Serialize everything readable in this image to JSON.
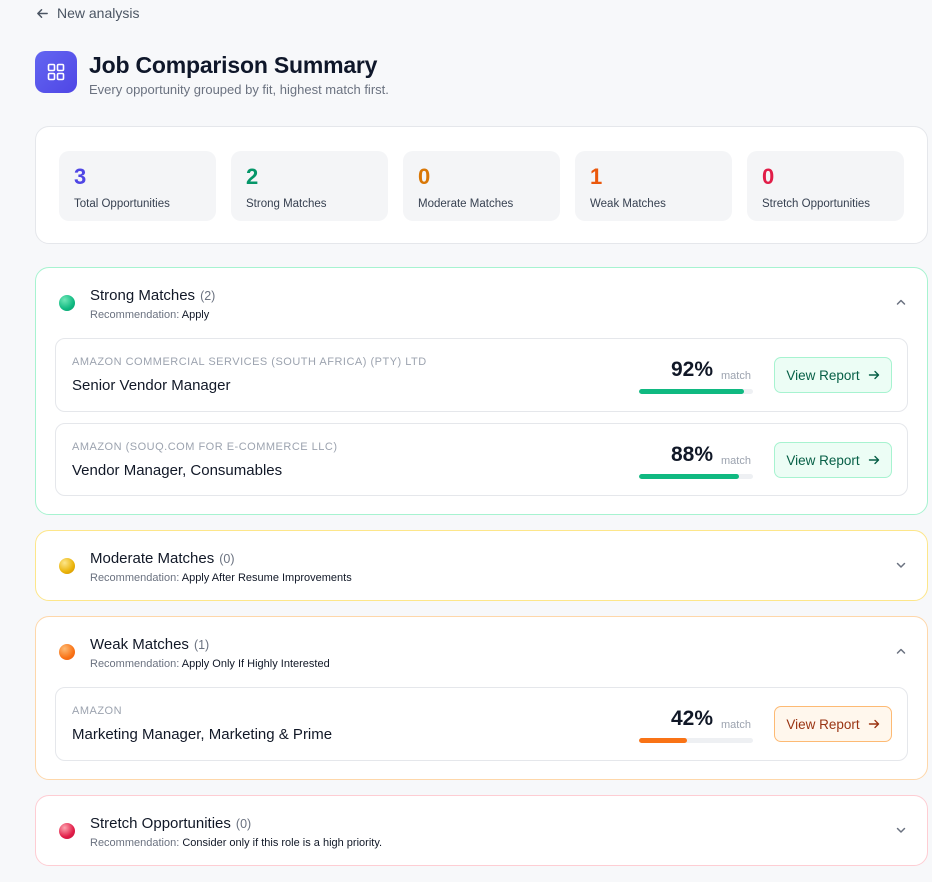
{
  "nav": {
    "back_label": "New analysis"
  },
  "header": {
    "title": "Job Comparison Summary",
    "subtitle": "Every opportunity grouped by fit, highest match first."
  },
  "stats": [
    {
      "value": "3",
      "label": "Total Opportunities",
      "color": "#4f46e5"
    },
    {
      "value": "2",
      "label": "Strong Matches",
      "color": "#059669"
    },
    {
      "value": "0",
      "label": "Moderate Matches",
      "color": "#d97706"
    },
    {
      "value": "1",
      "label": "Weak Matches",
      "color": "#ea580c"
    },
    {
      "value": "0",
      "label": "Stretch Opportunities",
      "color": "#e11d48"
    }
  ],
  "groups": {
    "strong": {
      "name": "Strong Matches",
      "count": "(2)",
      "rec_prefix": "Recommendation:",
      "rec_value": "Apply",
      "expanded": true,
      "color": "#10b981",
      "jobs": [
        {
          "company": "AMAZON COMMERCIAL SERVICES (SOUTH AFRICA) (PTY) LTD",
          "role": "Senior Vendor Manager",
          "match_pct": "92%",
          "match_word": "match",
          "match_value": 92,
          "button": "View Report"
        },
        {
          "company": "AMAZON (SOUQ.COM FOR E-COMMERCE LLC)",
          "role": "Vendor Manager, Consumables",
          "match_pct": "88%",
          "match_word": "match",
          "match_value": 88,
          "button": "View Report"
        }
      ]
    },
    "moderate": {
      "name": "Moderate Matches",
      "count": "(0)",
      "rec_prefix": "Recommendation:",
      "rec_value": "Apply After Resume Improvements",
      "expanded": false,
      "color": "#eab308"
    },
    "weak": {
      "name": "Weak Matches",
      "count": "(1)",
      "rec_prefix": "Recommendation:",
      "rec_value": "Apply Only If Highly Interested",
      "expanded": true,
      "color": "#f97316",
      "jobs": [
        {
          "company": "AMAZON",
          "role": "Marketing Manager, Marketing & Prime",
          "match_pct": "42%",
          "match_word": "match",
          "match_value": 42,
          "button": "View Report"
        }
      ]
    },
    "stretch": {
      "name": "Stretch Opportunities",
      "count": "(0)",
      "rec_prefix": "Recommendation:",
      "rec_value": "Consider only if this role is a high priority.",
      "expanded": false,
      "color": "#e11d48"
    }
  },
  "icons": {
    "back": "arrow-left-icon",
    "app": "grid-icon",
    "collapse": "chevron-up-icon",
    "expand": "chevron-down-icon",
    "button": "arrow-right-icon"
  }
}
